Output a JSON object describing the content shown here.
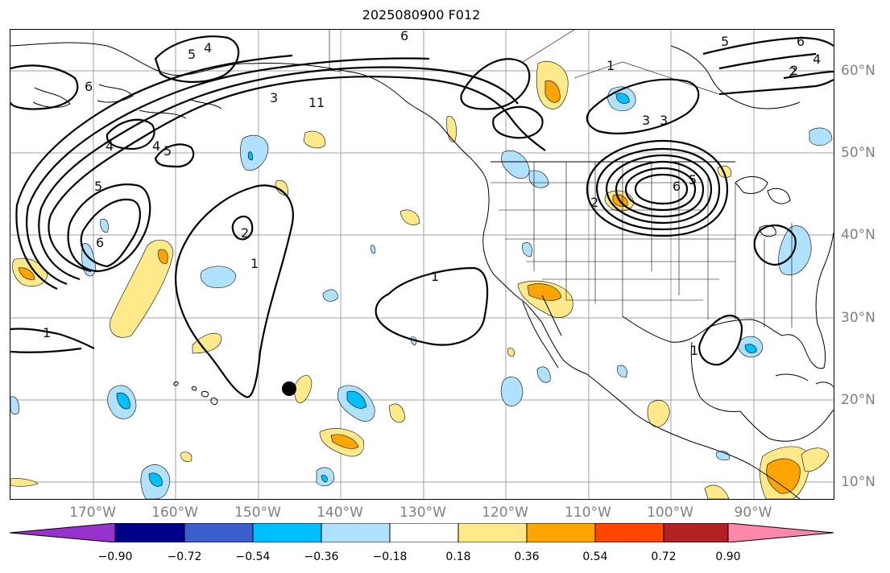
{
  "title": "2025080900 F012",
  "lon_labels": [
    "170°W",
    "160°W",
    "150°W",
    "140°W",
    "130°W",
    "120°W",
    "110°W",
    "100°W",
    "90°W"
  ],
  "lat_labels": [
    "60°N",
    "50°N",
    "40°N",
    "30°N",
    "20°N",
    "10°N"
  ],
  "colorbar": {
    "ticks": [
      "−0.90",
      "−0.72",
      "−0.54",
      "−0.36",
      "−0.18",
      "0.18",
      "0.36",
      "0.54",
      "0.72",
      "0.90"
    ],
    "colors": [
      "#9932cc",
      "#00008b",
      "#3a5fcd",
      "#00bfff",
      "#b0e2ff",
      "#ffffff",
      "#ffe98a",
      "#ffa500",
      "#ff4500",
      "#b22222",
      "#ff88aa"
    ]
  },
  "contour_labels": [
    "6",
    "5",
    "4",
    "1",
    "6",
    "1",
    "2",
    "6",
    "4",
    "4",
    "3",
    "1",
    "5",
    "4",
    "5",
    "5",
    "6",
    "2",
    "1",
    "1",
    "1",
    "2",
    "3",
    "6",
    "5",
    "2",
    "3",
    "1"
  ],
  "marker": "black-dot"
}
